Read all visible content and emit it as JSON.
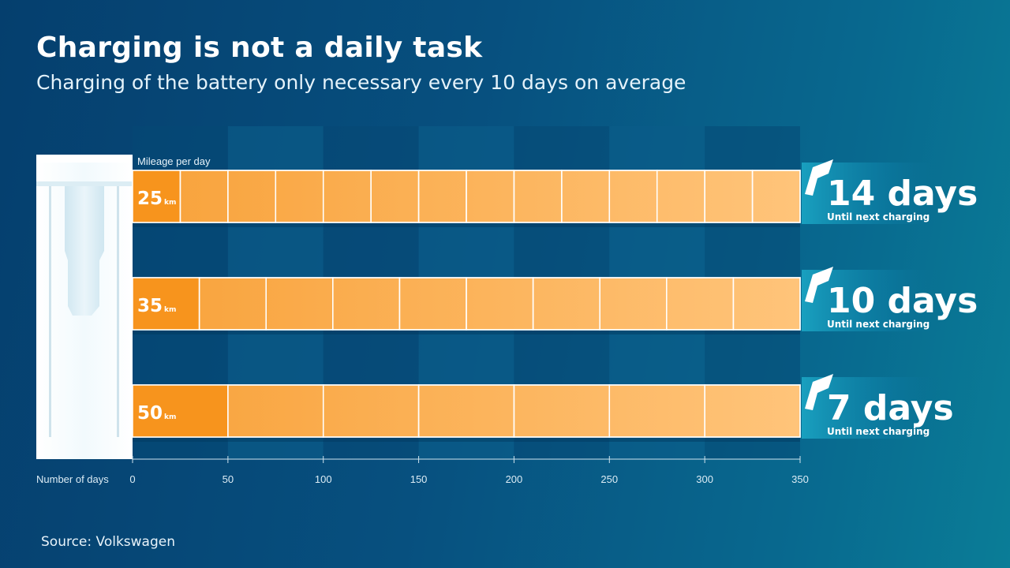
{
  "title": "Charging is not a daily task",
  "subtitle": "Charging of the battery only necessary every 10 days on average",
  "source": "Source: Volkswagen",
  "colors": {
    "bar_light": "#ffbf70",
    "bar_dark": "#f7931e",
    "bar_first_segment": "#f7941d",
    "band_dark": "#054672",
    "band_light": "#0a5d8a",
    "charger_body": "#ffffff"
  },
  "icons": [
    "charging-station-icon",
    "plug-hook-icon"
  ],
  "chart_data": {
    "type": "bar",
    "orientation": "horizontal",
    "title": "Charging is not a daily task",
    "subtitle": "Charging of the battery only necessary every 10 days on average",
    "xlabel": "Number of days",
    "series_label": "Mileage per day",
    "xlim": [
      0,
      350
    ],
    "xticks": [
      0,
      50,
      100,
      150,
      200,
      250,
      300,
      350
    ],
    "total_range_km": 350,
    "bars": [
      {
        "mileage": "25",
        "unit": "km",
        "segment_km": 25,
        "segments": 14,
        "days_label": "14 days",
        "days": 14,
        "sub_label": "Until next charging"
      },
      {
        "mileage": "35",
        "unit": "km",
        "segment_km": 35,
        "segments": 10,
        "days_label": "10 days",
        "days": 10,
        "sub_label": "Until next charging"
      },
      {
        "mileage": "50",
        "unit": "km",
        "segment_km": 50,
        "segments": 7,
        "days_label": "7 days",
        "days": 7,
        "sub_label": "Until next charging"
      }
    ]
  }
}
